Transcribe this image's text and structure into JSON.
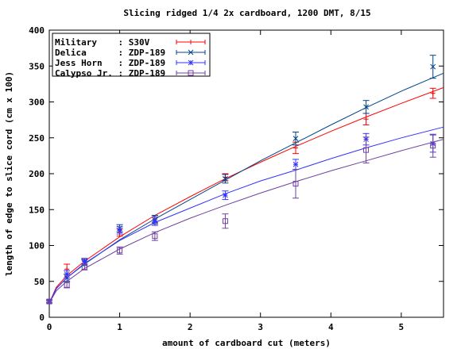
{
  "chart_data": {
    "type": "line",
    "title": "Slicing ridged 1/4 2x cardboard, 1200 DMT, 8/15",
    "xlabel": "amount of cardboard cut (meters)",
    "ylabel": "length of edge to slice cord (cm x 100)",
    "xlim": [
      0,
      5.6
    ],
    "ylim": [
      0,
      400
    ],
    "xticks": [
      0,
      1,
      2,
      3,
      4,
      5
    ],
    "yticks": [
      0,
      50,
      100,
      150,
      200,
      250,
      300,
      350,
      400
    ],
    "legend_position": "top-left",
    "grid": false,
    "series": [
      {
        "name": "Military    : S30V",
        "color": "#ff0000",
        "marker": "plus",
        "points": [
          {
            "x": 0,
            "y": 22,
            "err": 2
          },
          {
            "x": 0.25,
            "y": 67,
            "err": 7
          },
          {
            "x": 0.5,
            "y": 78,
            "err": 4
          },
          {
            "x": 1.0,
            "y": 118,
            "err": 5
          },
          {
            "x": 1.5,
            "y": 137,
            "err": 5
          },
          {
            "x": 2.5,
            "y": 195,
            "err": 5
          },
          {
            "x": 3.5,
            "y": 236,
            "err": 8
          },
          {
            "x": 4.5,
            "y": 276,
            "err": 8
          },
          {
            "x": 5.45,
            "y": 312,
            "err": 7
          }
        ],
        "fit": [
          {
            "x": 0,
            "y": 20
          },
          {
            "x": 0.1,
            "y": 42
          },
          {
            "x": 0.25,
            "y": 58
          },
          {
            "x": 0.5,
            "y": 78
          },
          {
            "x": 1,
            "y": 112
          },
          {
            "x": 1.5,
            "y": 142
          },
          {
            "x": 2,
            "y": 168
          },
          {
            "x": 2.5,
            "y": 193
          },
          {
            "x": 3,
            "y": 216
          },
          {
            "x": 3.5,
            "y": 238
          },
          {
            "x": 4,
            "y": 259
          },
          {
            "x": 4.5,
            "y": 279
          },
          {
            "x": 5,
            "y": 298
          },
          {
            "x": 5.6,
            "y": 320
          }
        ]
      },
      {
        "name": "Delica      : ZDP-189",
        "color": "#00448a",
        "marker": "cross",
        "points": [
          {
            "x": 0,
            "y": 22,
            "err": 2
          },
          {
            "x": 0.25,
            "y": 55,
            "err": 5
          },
          {
            "x": 0.5,
            "y": 76,
            "err": 4
          },
          {
            "x": 1.0,
            "y": 124,
            "err": 5
          },
          {
            "x": 1.5,
            "y": 136,
            "err": 6
          },
          {
            "x": 2.5,
            "y": 193,
            "err": 6
          },
          {
            "x": 3.5,
            "y": 249,
            "err": 9
          },
          {
            "x": 4.5,
            "y": 293,
            "err": 9
          },
          {
            "x": 5.45,
            "y": 349,
            "err": 16
          }
        ],
        "fit": [
          {
            "x": 0,
            "y": 20
          },
          {
            "x": 0.1,
            "y": 40
          },
          {
            "x": 0.25,
            "y": 55
          },
          {
            "x": 0.5,
            "y": 74
          },
          {
            "x": 1,
            "y": 108
          },
          {
            "x": 1.5,
            "y": 137
          },
          {
            "x": 2,
            "y": 164
          },
          {
            "x": 2.5,
            "y": 191
          },
          {
            "x": 3,
            "y": 218
          },
          {
            "x": 3.5,
            "y": 243
          },
          {
            "x": 4,
            "y": 268
          },
          {
            "x": 4.5,
            "y": 292
          },
          {
            "x": 5,
            "y": 315
          },
          {
            "x": 5.6,
            "y": 340
          }
        ]
      },
      {
        "name": "Jess Horn   : ZDP-189",
        "color": "#3333ff",
        "marker": "star",
        "points": [
          {
            "x": 0,
            "y": 22,
            "err": 2
          },
          {
            "x": 0.25,
            "y": 60,
            "err": 5
          },
          {
            "x": 0.5,
            "y": 78,
            "err": 4
          },
          {
            "x": 1.0,
            "y": 121,
            "err": 5
          },
          {
            "x": 1.5,
            "y": 134,
            "err": 6
          },
          {
            "x": 2.5,
            "y": 170,
            "err": 6
          },
          {
            "x": 3.5,
            "y": 213,
            "err": 7
          },
          {
            "x": 4.5,
            "y": 248,
            "err": 8
          },
          {
            "x": 5.45,
            "y": 242,
            "err": 12
          }
        ],
        "fit": [
          {
            "x": 0,
            "y": 20
          },
          {
            "x": 0.1,
            "y": 40
          },
          {
            "x": 0.25,
            "y": 55
          },
          {
            "x": 0.5,
            "y": 75
          },
          {
            "x": 1,
            "y": 107
          },
          {
            "x": 1.5,
            "y": 132
          },
          {
            "x": 2,
            "y": 152
          },
          {
            "x": 2.5,
            "y": 172
          },
          {
            "x": 3,
            "y": 190
          },
          {
            "x": 3.5,
            "y": 205
          },
          {
            "x": 4,
            "y": 221
          },
          {
            "x": 4.5,
            "y": 236
          },
          {
            "x": 5,
            "y": 250
          },
          {
            "x": 5.6,
            "y": 265
          }
        ]
      },
      {
        "name": "Calypso Jr. : ZDP-189",
        "color": "#7040a0",
        "marker": "square",
        "points": [
          {
            "x": 0,
            "y": 22,
            "err": 2
          },
          {
            "x": 0.25,
            "y": 45,
            "err": 4
          },
          {
            "x": 0.5,
            "y": 70,
            "err": 4
          },
          {
            "x": 1.0,
            "y": 93,
            "err": 5
          },
          {
            "x": 1.5,
            "y": 113,
            "err": 6
          },
          {
            "x": 2.5,
            "y": 134,
            "err": 10
          },
          {
            "x": 3.5,
            "y": 186,
            "err": 20
          },
          {
            "x": 4.5,
            "y": 233,
            "err": 18
          },
          {
            "x": 5.45,
            "y": 239,
            "err": 16
          }
        ],
        "fit": [
          {
            "x": 0,
            "y": 20
          },
          {
            "x": 0.1,
            "y": 37
          },
          {
            "x": 0.25,
            "y": 50
          },
          {
            "x": 0.5,
            "y": 68
          },
          {
            "x": 1,
            "y": 95
          },
          {
            "x": 1.5,
            "y": 118
          },
          {
            "x": 2,
            "y": 138
          },
          {
            "x": 2.5,
            "y": 156
          },
          {
            "x": 3,
            "y": 173
          },
          {
            "x": 3.5,
            "y": 189
          },
          {
            "x": 4,
            "y": 204
          },
          {
            "x": 4.5,
            "y": 218
          },
          {
            "x": 5,
            "y": 232
          },
          {
            "x": 5.6,
            "y": 248
          }
        ]
      }
    ]
  }
}
